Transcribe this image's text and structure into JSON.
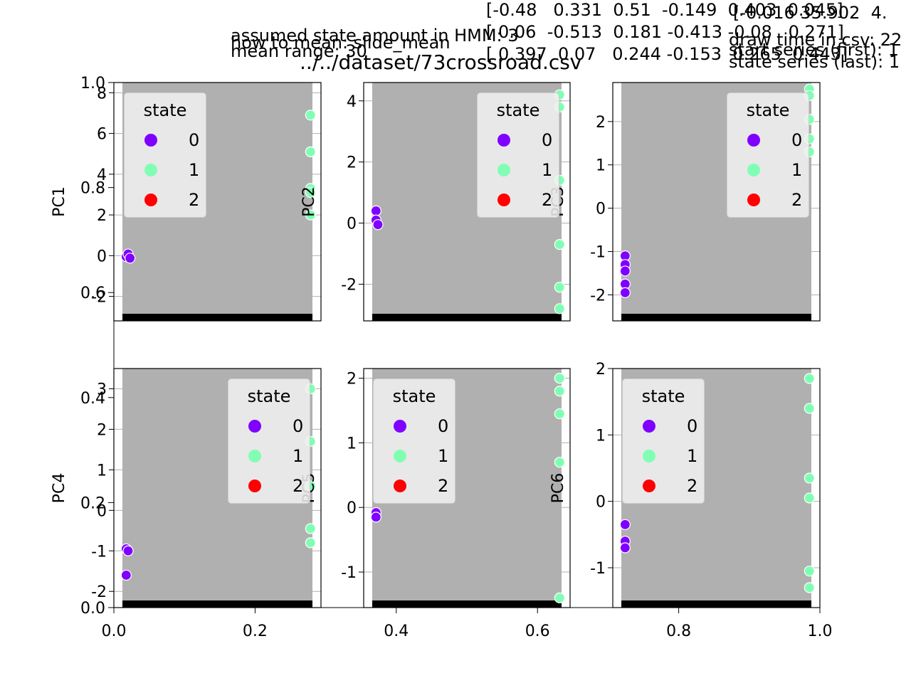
{
  "header": {
    "assumed_state_text": "assumed state amount in HMM: 3",
    "how_to_mean_text": "how to mean: slide_mean",
    "mean_range_text": "mean range: 30",
    "matrix_row_1": "[-0.48   0.331  0.51  -0.149  0.403  0.045]",
    "matrix_row_2": "[ 0.06  -0.513  0.181 -0.413 -0.08   0.271]",
    "matrix_row_3": "[ 0.397  0.07   0.244 -0.153  0.265  0.443]",
    "right_text_1": "[-0.016 35.902  4.",
    "right_text_2": "draw time in csv: 22",
    "right_text_3": "start series (first): 1",
    "right_text_4": "state series (last): 1",
    "title": "../../dataset/73crossroad.csv"
  },
  "colors": {
    "state0": "#8000ff",
    "state1": "#80ffb4",
    "state2": "#ff0000",
    "plot_bg": "#b0b0b0",
    "axis": "#000000"
  },
  "overlay_axis": {
    "yticks": [
      "0.0",
      "0.2",
      "0.4",
      "0.6",
      "0.8",
      "1.0"
    ],
    "xticks": [
      "0.0",
      "0.2",
      "0.4",
      "0.6",
      "0.8",
      "1.0"
    ]
  },
  "chart_data": [
    {
      "type": "scatter",
      "ylabel": "PC1",
      "ylim": [
        -3.2,
        8.5
      ],
      "yticks": [
        "-2",
        "0",
        "2",
        "4",
        "6",
        "8"
      ],
      "legend": {
        "title": "state",
        "entries": [
          "0",
          "1",
          "2"
        ]
      },
      "series": [
        {
          "name": "0",
          "points": [
            [
              0.02,
              -0.05
            ],
            [
              0.03,
              0.08
            ],
            [
              0.04,
              -0.12
            ]
          ]
        },
        {
          "name": "1",
          "points": [
            [
              0.99,
              6.9
            ],
            [
              0.99,
              5.1
            ],
            [
              0.99,
              3.3
            ],
            [
              0.99,
              3.1
            ],
            [
              0.99,
              2.0
            ]
          ]
        },
        {
          "name": "2",
          "points": []
        }
      ]
    },
    {
      "type": "scatter",
      "ylabel": "PC2",
      "ylim": [
        -3.2,
        4.6
      ],
      "yticks": [
        "-2",
        "0",
        "2",
        "4"
      ],
      "legend": {
        "title": "state",
        "entries": [
          "0",
          "1",
          "2"
        ]
      },
      "series": [
        {
          "name": "0",
          "points": [
            [
              0.02,
              0.4
            ],
            [
              0.02,
              0.1
            ],
            [
              0.03,
              -0.05
            ]
          ]
        },
        {
          "name": "1",
          "points": [
            [
              0.99,
              4.2
            ],
            [
              0.99,
              3.8
            ],
            [
              0.99,
              1.4
            ],
            [
              0.99,
              -0.7
            ],
            [
              0.99,
              -2.1
            ],
            [
              0.99,
              -2.8
            ]
          ]
        },
        {
          "name": "2",
          "points": []
        }
      ]
    },
    {
      "type": "scatter",
      "ylabel": "PC3",
      "ylim": [
        -2.6,
        2.9
      ],
      "yticks": [
        "-2",
        "-1",
        "0",
        "1",
        "2"
      ],
      "legend": {
        "title": "state",
        "entries": [
          "0",
          "1",
          "2"
        ]
      },
      "series": [
        {
          "name": "0",
          "points": [
            [
              0.02,
              -1.1
            ],
            [
              0.02,
              -1.3
            ],
            [
              0.02,
              -1.45
            ],
            [
              0.02,
              -1.75
            ],
            [
              0.02,
              -1.95
            ]
          ]
        },
        {
          "name": "1",
          "points": [
            [
              0.99,
              2.75
            ],
            [
              0.99,
              2.6
            ],
            [
              0.99,
              2.05
            ],
            [
              0.99,
              1.6
            ],
            [
              0.99,
              1.3
            ]
          ]
        },
        {
          "name": "2",
          "points": []
        }
      ]
    },
    {
      "type": "scatter",
      "ylabel": "PC4",
      "ylim": [
        -2.4,
        3.5
      ],
      "yticks": [
        "-2",
        "-1",
        "0",
        "1",
        "2",
        "3"
      ],
      "legend": {
        "title": "state",
        "entries": [
          "0",
          "1",
          "2"
        ]
      },
      "series": [
        {
          "name": "0",
          "points": [
            [
              0.02,
              -0.95
            ],
            [
              0.03,
              -1.0
            ],
            [
              0.02,
              -1.6
            ]
          ]
        },
        {
          "name": "1",
          "points": [
            [
              0.99,
              3.0
            ],
            [
              0.99,
              1.7
            ],
            [
              0.99,
              0.6
            ],
            [
              0.99,
              -0.45
            ],
            [
              0.99,
              -0.8
            ]
          ]
        },
        {
          "name": "2",
          "points": []
        }
      ]
    },
    {
      "type": "scatter",
      "ylabel": "PC5",
      "ylim": [
        -1.55,
        2.15
      ],
      "yticks": [
        "-1",
        "0",
        "1",
        "2"
      ],
      "legend": {
        "title": "state",
        "entries": [
          "0",
          "1",
          "2"
        ]
      },
      "series": [
        {
          "name": "0",
          "points": [
            [
              0.02,
              -0.08
            ],
            [
              0.02,
              -0.15
            ]
          ]
        },
        {
          "name": "1",
          "points": [
            [
              0.99,
              2.0
            ],
            [
              0.99,
              1.8
            ],
            [
              0.99,
              1.45
            ],
            [
              0.99,
              0.7
            ],
            [
              0.99,
              -1.4
            ]
          ]
        },
        {
          "name": "2",
          "points": []
        }
      ]
    },
    {
      "type": "scatter",
      "ylabel": "PC6",
      "ylim": [
        -1.6,
        2.0
      ],
      "yticks": [
        "-1",
        "0",
        "1",
        "2"
      ],
      "legend": {
        "title": "state",
        "entries": [
          "0",
          "1",
          "2"
        ]
      },
      "series": [
        {
          "name": "0",
          "points": [
            [
              0.02,
              -0.35
            ],
            [
              0.02,
              -0.6
            ],
            [
              0.02,
              -0.7
            ]
          ]
        },
        {
          "name": "1",
          "points": [
            [
              0.99,
              1.85
            ],
            [
              0.99,
              1.4
            ],
            [
              0.99,
              0.35
            ],
            [
              0.99,
              0.05
            ],
            [
              0.99,
              -1.05
            ],
            [
              0.99,
              -1.3
            ]
          ]
        },
        {
          "name": "2",
          "points": []
        }
      ]
    }
  ]
}
